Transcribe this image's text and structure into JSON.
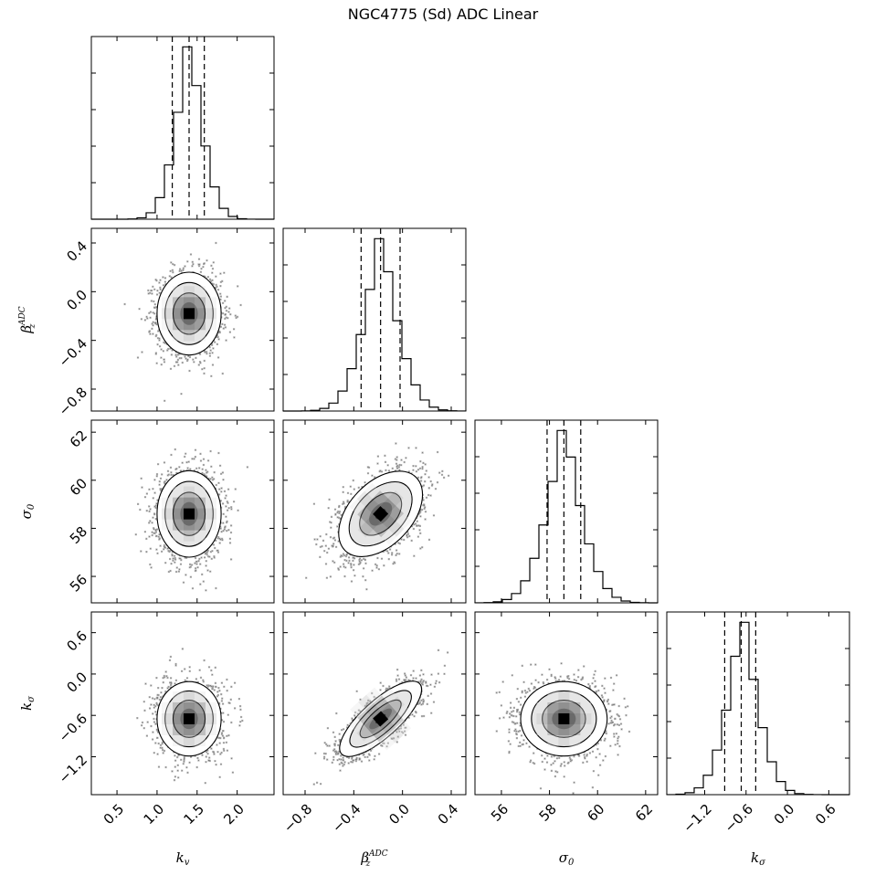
{
  "chart_data": {
    "type": "corner",
    "title": "NGC4775 (Sd) ADC Linear",
    "params": [
      {
        "label": "k_v",
        "label_html": "k<tspan font-size='10' dy='3'>v</tspan>",
        "range": [
          0.18,
          2.46
        ],
        "ticks": [
          0.5,
          1.0,
          1.5,
          2.0
        ],
        "tick_labels": [
          "0.5",
          "1.0",
          "1.5",
          "2.0"
        ],
        "mean": 1.4,
        "sd": 0.2,
        "quantiles": [
          1.19,
          1.4,
          1.59
        ]
      },
      {
        "label": "beta_z^ADC",
        "label_html": "β<tspan font-size='9' dy='-7'>ADC</tspan><tspan font-size='9' dx='-24' dy='11'>z</tspan>",
        "range": [
          -0.98,
          0.52
        ],
        "ticks": [
          -0.8,
          -0.4,
          0.0,
          0.4
        ],
        "tick_labels": [
          "−0.8",
          "−0.4",
          "0.0",
          "0.4"
        ],
        "mean": -0.18,
        "sd": 0.17,
        "quantiles": [
          -0.34,
          -0.18,
          -0.02
        ]
      },
      {
        "label": "sigma_0",
        "label_html": "σ<tspan font-size='10' dy='3'>0</tspan>",
        "range": [
          54.9,
          62.5
        ],
        "ticks": [
          56,
          58,
          60,
          62
        ],
        "tick_labels": [
          "56",
          "58",
          "60",
          "62"
        ],
        "mean": 58.6,
        "sd": 0.9,
        "quantiles": [
          57.9,
          58.6,
          59.3
        ]
      },
      {
        "label": "k_sigma",
        "label_html": "k<tspan font-size='10' dy='3'>σ</tspan>",
        "range": [
          -1.75,
          0.9
        ],
        "ticks": [
          -1.2,
          -0.6,
          0.0,
          0.6
        ],
        "tick_labels": [
          "−1.2",
          "−0.6",
          "0.0",
          "0.6"
        ],
        "mean": -0.65,
        "sd": 0.27,
        "quantiles": [
          -0.91,
          -0.67,
          -0.46
        ]
      }
    ],
    "y_tick_params": {
      "row1": {
        "ticks": [
          -0.8,
          -0.4,
          0.0,
          0.4
        ],
        "tick_labels": [
          "−0.8",
          "−0.4",
          "0.0",
          "0.4"
        ]
      },
      "row2": {
        "ticks": [
          56,
          58,
          60,
          62
        ],
        "tick_labels": [
          "56",
          "58",
          "60",
          "62"
        ]
      },
      "row3": {
        "ticks": [
          -1.2,
          -0.6,
          0.0,
          0.6
        ],
        "tick_labels": [
          "−1.2",
          "−0.6",
          "0.0",
          "0.6"
        ]
      }
    },
    "correlations": {
      "0-1": 0.0,
      "0-2": 0.0,
      "0-3": 0.0,
      "1-2": 0.45,
      "1-3": 0.78,
      "2-3": 0.0
    },
    "y_ticks_hidden_on_histograms": true,
    "grid": false
  }
}
